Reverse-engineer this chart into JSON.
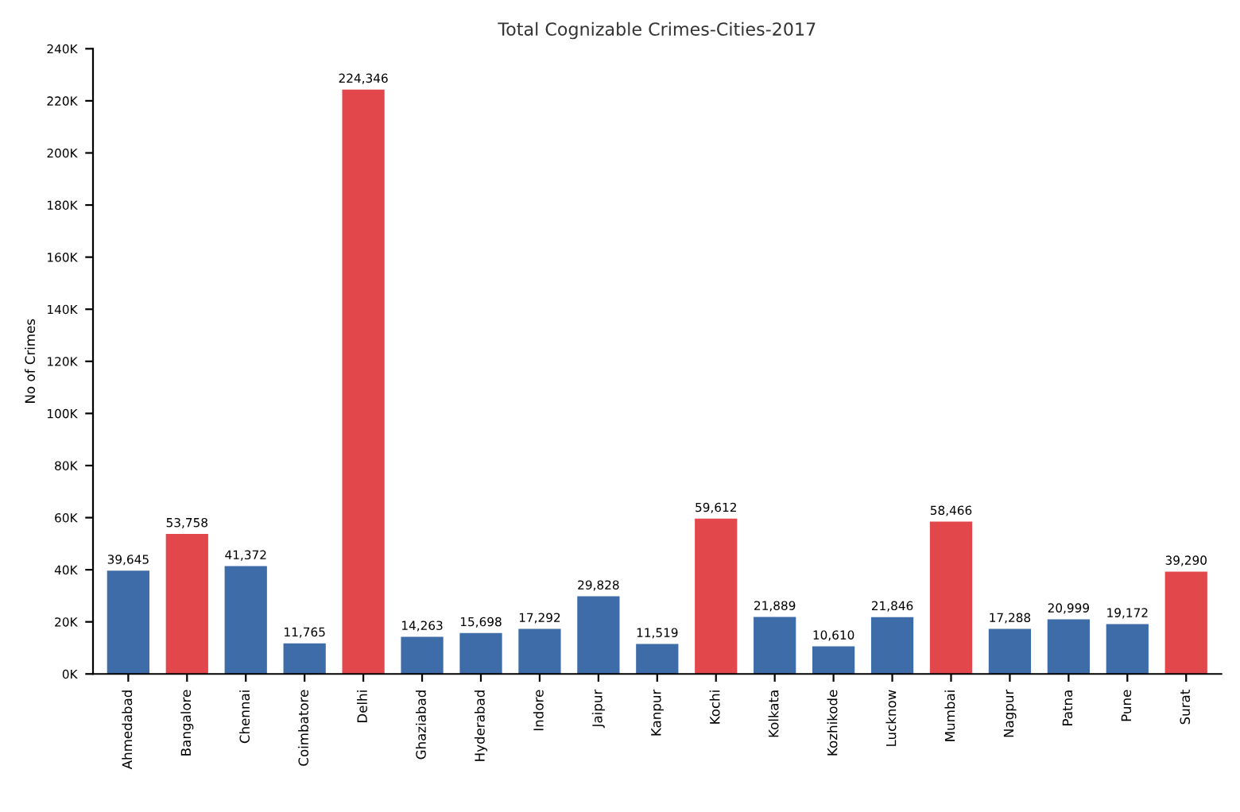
{
  "chart_data": {
    "type": "bar",
    "title": "Total Cognizable Crimes-Cities-2017",
    "ylabel": "No of Crimes",
    "categories": [
      "Ahmedabad",
      "Bangalore",
      "Chennai",
      "Coimbatore",
      "Delhi",
      "Ghaziabad",
      "Hyderabad",
      "Indore",
      "Jaipur",
      "Kanpur",
      "Kochi",
      "Kolkata",
      "Kozhikode",
      "Lucknow",
      "Mumbai",
      "Nagpur",
      "Patna",
      "Pune",
      "Surat"
    ],
    "values": [
      39645,
      53758,
      41372,
      11765,
      224346,
      14263,
      15698,
      17292,
      29828,
      11519,
      59612,
      21889,
      10610,
      21846,
      58466,
      17288,
      20999,
      19172,
      39290
    ],
    "colors": [
      "#3d6ca8",
      "#e2474c",
      "#3d6ca8",
      "#3d6ca8",
      "#e2474c",
      "#3d6ca8",
      "#3d6ca8",
      "#3d6ca8",
      "#3d6ca8",
      "#3d6ca8",
      "#e2474c",
      "#3d6ca8",
      "#3d6ca8",
      "#3d6ca8",
      "#e2474c",
      "#3d6ca8",
      "#3d6ca8",
      "#3d6ca8",
      "#e2474c"
    ],
    "value_labels": [
      "39,645",
      "53,758",
      "41,372",
      "11,765",
      "224,346",
      "14,263",
      "15,698",
      "17,292",
      "29,828",
      "11,519",
      "59,612",
      "21,889",
      "10,610",
      "21,846",
      "58,466",
      "17,288",
      "20,999",
      "19,172",
      "39,290"
    ],
    "ylim": [
      0,
      240000
    ],
    "yticks": [
      {
        "value": 0,
        "label": "0K"
      },
      {
        "value": 20000,
        "label": "20K"
      },
      {
        "value": 40000,
        "label": "40K"
      },
      {
        "value": 60000,
        "label": "60K"
      },
      {
        "value": 80000,
        "label": "80K"
      },
      {
        "value": 100000,
        "label": "100K"
      },
      {
        "value": 120000,
        "label": "120K"
      },
      {
        "value": 140000,
        "label": "140K"
      },
      {
        "value": 160000,
        "label": "160K"
      },
      {
        "value": 180000,
        "label": "180K"
      },
      {
        "value": 200000,
        "label": "200K"
      },
      {
        "value": 220000,
        "label": "220K"
      },
      {
        "value": 240000,
        "label": "240K"
      }
    ],
    "grid": false,
    "legend": false
  }
}
